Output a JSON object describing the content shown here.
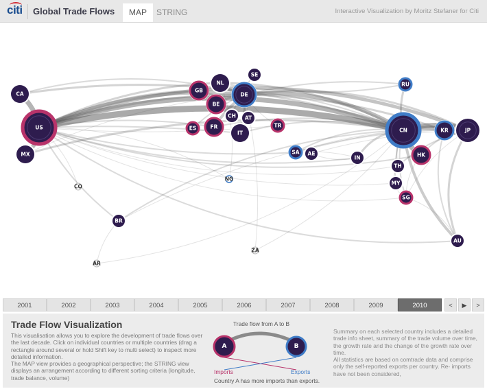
{
  "header": {
    "logo_text": "citi",
    "app_title": "Global Trade Flows",
    "tabs": [
      {
        "label": "MAP",
        "active": true
      },
      {
        "label": "STRING",
        "active": false
      }
    ],
    "credit": "Interactive Visualization by Moritz Stefaner for Citi"
  },
  "colors": {
    "node_dark": "#2e1c4e",
    "import_ring": "#b8336a",
    "export_ring": "#3f7cc7",
    "flow": "#555555",
    "header_bg": "#e8e8e8",
    "active_year": "#6d6d6d"
  },
  "countries": [
    {
      "code": "CA",
      "size": "medium",
      "ring": "none"
    },
    {
      "code": "US",
      "size": "xlarge",
      "ring": "imports"
    },
    {
      "code": "MX",
      "size": "medium",
      "ring": "none"
    },
    {
      "code": "CO",
      "size": "tiny",
      "ring": "none"
    },
    {
      "code": "BR",
      "size": "small",
      "ring": "none"
    },
    {
      "code": "AR",
      "size": "tiny",
      "ring": "none"
    },
    {
      "code": "GB",
      "size": "medium",
      "ring": "imports"
    },
    {
      "code": "NL",
      "size": "medium",
      "ring": "none"
    },
    {
      "code": "SE",
      "size": "small",
      "ring": "none"
    },
    {
      "code": "DE",
      "size": "large",
      "ring": "exports"
    },
    {
      "code": "BE",
      "size": "medium",
      "ring": "imports"
    },
    {
      "code": "CH",
      "size": "small",
      "ring": "none"
    },
    {
      "code": "AT",
      "size": "small",
      "ring": "none"
    },
    {
      "code": "FR",
      "size": "medium",
      "ring": "imports"
    },
    {
      "code": "ES",
      "size": "small",
      "ring": "imports"
    },
    {
      "code": "IT",
      "size": "medium",
      "ring": "none"
    },
    {
      "code": "TR",
      "size": "small",
      "ring": "imports"
    },
    {
      "code": "SA",
      "size": "small",
      "ring": "exports"
    },
    {
      "code": "AE",
      "size": "small",
      "ring": "none"
    },
    {
      "code": "NG",
      "size": "tiny",
      "ring": "exports"
    },
    {
      "code": "ZA",
      "size": "tiny",
      "ring": "none"
    },
    {
      "code": "IN",
      "size": "small",
      "ring": "none"
    },
    {
      "code": "RU",
      "size": "small",
      "ring": "exports"
    },
    {
      "code": "CN",
      "size": "xlarge",
      "ring": "exports"
    },
    {
      "code": "KR",
      "size": "medium",
      "ring": "exports"
    },
    {
      "code": "JP",
      "size": "large",
      "ring": "none"
    },
    {
      "code": "HK",
      "size": "medium",
      "ring": "imports"
    },
    {
      "code": "TH",
      "size": "small",
      "ring": "none"
    },
    {
      "code": "MY",
      "size": "small",
      "ring": "none"
    },
    {
      "code": "SG",
      "size": "small",
      "ring": "imports"
    },
    {
      "code": "AU",
      "size": "small",
      "ring": "none"
    }
  ],
  "timeline": {
    "years": [
      "2001",
      "2002",
      "2003",
      "2004",
      "2005",
      "2006",
      "2007",
      "2008",
      "2009",
      "2010"
    ],
    "selected": "2010",
    "controls": {
      "prev": "<",
      "play": "▶",
      "next": ">"
    }
  },
  "info": {
    "title": "Trade Flow Visualization",
    "description": "This visualisation allows you to explore the development of trade flows over the last decade. Click on individual countries or multiple countries (drag a rectangle around several or hold Shift key to multi select) to inspect more detailed information.\nThe MAP view provides a geographical perspective; the STRING view displays an arrangement according to different sorting criteria (longitude, trade balance, volume)",
    "legend": {
      "title": "Trade flow from A to B",
      "node_a": "A",
      "node_b": "B",
      "imports_label": "Imports",
      "exports_label": "Exports",
      "caption": "Country A has more imports than exports."
    },
    "summary": "Summary on each selected country includes a detailed trade info sheet, summary of the trade volume over time, the growth rate and the change of the growth rate over time.\nAll statistics are based on comtrade data and comprise only the self-reported exports per country. Re- imports have not been considered,"
  }
}
